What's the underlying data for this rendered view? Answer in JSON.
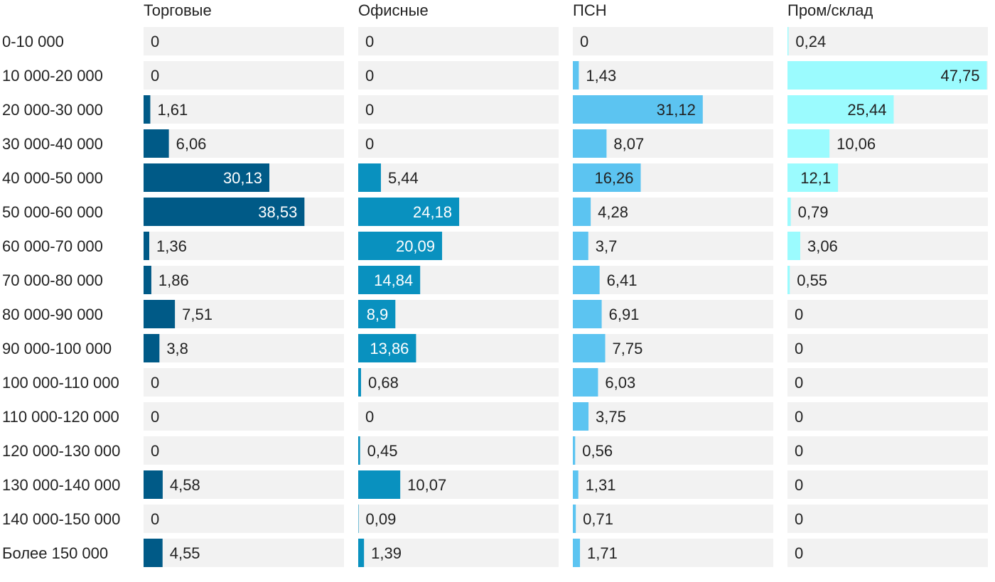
{
  "chart_data": {
    "type": "bar",
    "orientation": "horizontal",
    "layout": "small-multiples",
    "xlim": [
      0,
      48
    ],
    "categories": [
      "0-10 000",
      "10 000-20 000",
      "20 000-30 000",
      "30 000-40 000",
      "40 000-50 000",
      "50 000-60 000",
      "60 000-70 000",
      "70 000-80 000",
      "80 000-90 000",
      "90 000-100 000",
      "100 000-110 000",
      "110 000-120 000",
      "120 000-130 000",
      "130 000-140 000",
      "140 000-150 000",
      "Более 150 000"
    ],
    "series": [
      {
        "name": "Торговые",
        "color": "#005a87",
        "values": [
          0,
          0,
          1.61,
          6.06,
          30.13,
          38.53,
          1.36,
          1.86,
          7.51,
          3.8,
          0,
          0,
          0,
          4.58,
          0,
          4.55
        ],
        "labels": [
          "0",
          "0",
          "1,61",
          "6,06",
          "30,13",
          "38,53",
          "1,36",
          "1,86",
          "7,51",
          "3,8",
          "0",
          "0",
          "0",
          "4,58",
          "0",
          "4,55"
        ]
      },
      {
        "name": "Офисные",
        "color": "#0991bf",
        "values": [
          0,
          0,
          0,
          0,
          5.44,
          24.18,
          20.09,
          14.84,
          8.9,
          13.86,
          0.68,
          0,
          0.45,
          10.07,
          0.09,
          1.39
        ],
        "labels": [
          "0",
          "0",
          "0",
          "0",
          "5,44",
          "24,18",
          "20,09",
          "14,84",
          "8,9",
          "13,86",
          "0,68",
          "0",
          "0,45",
          "10,07",
          "0,09",
          "1,39"
        ]
      },
      {
        "name": "ПСН",
        "color": "#5cc4f1",
        "values": [
          0,
          1.43,
          31.12,
          8.07,
          16.26,
          4.28,
          3.7,
          6.41,
          6.91,
          7.75,
          6.03,
          3.75,
          0.56,
          1.31,
          0.71,
          1.71
        ],
        "labels": [
          "0",
          "1,43",
          "31,12",
          "8,07",
          "16,26",
          "4,28",
          "3,7",
          "6,41",
          "6,91",
          "7,75",
          "6,03",
          "3,75",
          "0,56",
          "1,31",
          "0,71",
          "1,71"
        ]
      },
      {
        "name": "Пром/склад",
        "color": "#9bfbfe",
        "values": [
          0.24,
          47.75,
          25.44,
          10.06,
          12.1,
          0.79,
          3.06,
          0.55,
          0,
          0,
          0,
          0,
          0,
          0,
          0,
          0
        ],
        "labels": [
          "0,24",
          "47,75",
          "25,44",
          "10,06",
          "12,1",
          "0,79",
          "3,06",
          "0,55",
          "0",
          "0",
          "0",
          "0",
          "0",
          "0",
          "0",
          "0"
        ]
      }
    ],
    "title": "",
    "xlabel": "",
    "ylabel": "",
    "track_color": "#f2f2f2"
  }
}
